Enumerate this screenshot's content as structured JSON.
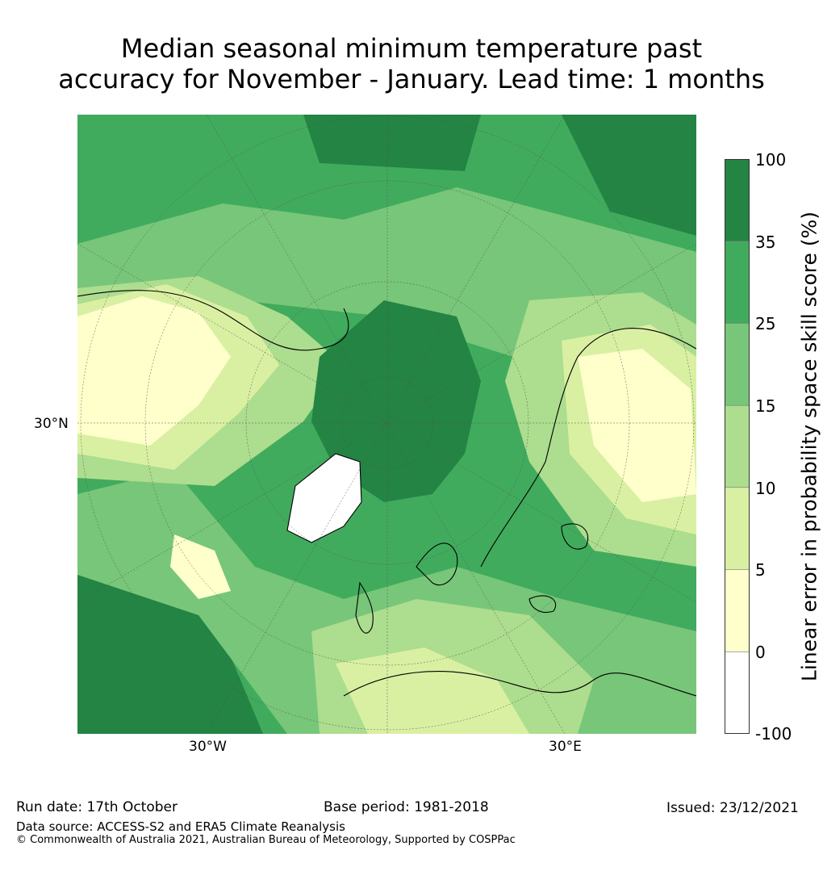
{
  "title": {
    "line1": "Median seasonal minimum temperature past",
    "line2": "accuracy for November - January. Lead time: 1 months"
  },
  "map": {
    "projection": "north polar stereographic",
    "lat_label": "30°N",
    "lon_labels": [
      "30°W",
      "30°E"
    ],
    "palette": {
      "c_neg100_0": "#ffffff",
      "c_0_5": "#ffffcc",
      "c_5_10": "#d9f0a3",
      "c_10_15": "#addd8e",
      "c_15_25": "#78c679",
      "c_25_35": "#41ab5d",
      "c_35_100": "#238443",
      "land_outline": "#000000"
    }
  },
  "colorbar": {
    "title": "Linear error in probability space skill score (%)",
    "ticks": [
      "100",
      "35",
      "25",
      "15",
      "10",
      "5",
      "0",
      "-100"
    ],
    "bins": [
      {
        "from": 35,
        "to": 100,
        "color": "#238443"
      },
      {
        "from": 25,
        "to": 35,
        "color": "#41ab5d"
      },
      {
        "from": 15,
        "to": 25,
        "color": "#78c679"
      },
      {
        "from": 10,
        "to": 15,
        "color": "#addd8e"
      },
      {
        "from": 5,
        "to": 10,
        "color": "#d9f0a3"
      },
      {
        "from": 0,
        "to": 5,
        "color": "#ffffcc"
      },
      {
        "from": -100,
        "to": 0,
        "color": "#ffffff"
      }
    ]
  },
  "footer": {
    "run_date": "Run date: 17th October",
    "base_period": "Base period: 1981-2018",
    "issued": "Issued: 23/12/2021",
    "data_source": "Data source: ACCESS-S2 and ERA5 Climate Reanalysis",
    "copyright": "© Commonwealth of Australia 2021, Australian Bureau of Meteorology, Supported by COSPPac"
  }
}
